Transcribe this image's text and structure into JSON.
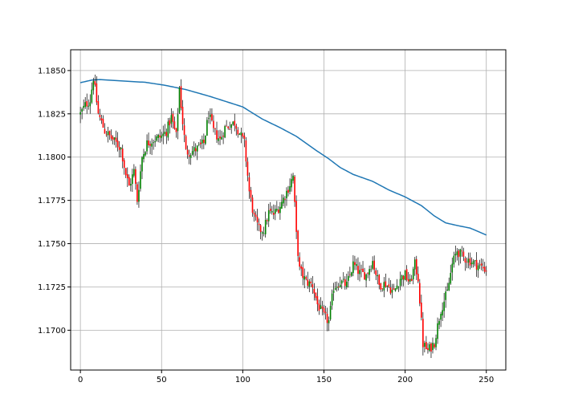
{
  "chart_data": {
    "type": "candlestick",
    "title": "",
    "xlabel": "",
    "ylabel": "",
    "xlim": [
      -6,
      262
    ],
    "ylim": [
      1.1677,
      1.1862
    ],
    "grid": true,
    "x_ticks": [
      0,
      50,
      100,
      150,
      200,
      250
    ],
    "x_tick_labels": [
      "0",
      "50",
      "100",
      "150",
      "200",
      "250"
    ],
    "y_ticks": [
      1.17,
      1.1725,
      1.175,
      1.1775,
      1.18,
      1.1825,
      1.185
    ],
    "y_tick_labels": [
      "1.1700",
      "1.1725",
      "1.1750",
      "1.1775",
      "1.1800",
      "1.1825",
      "1.1850"
    ],
    "colors": {
      "up": "#008000",
      "down": "#ff0000",
      "wick": "#000000",
      "moving_average": "#1f77b4",
      "grid": "#b0b0b0"
    },
    "close_anchors": [
      [
        0,
        1.1825
      ],
      [
        3,
        1.183
      ],
      [
        6,
        1.1833
      ],
      [
        8,
        1.1846
      ],
      [
        11,
        1.1825
      ],
      [
        15,
        1.1815
      ],
      [
        20,
        1.181
      ],
      [
        25,
        1.1805
      ],
      [
        28,
        1.179
      ],
      [
        30,
        1.1783
      ],
      [
        33,
        1.1792
      ],
      [
        35,
        1.1775
      ],
      [
        38,
        1.18
      ],
      [
        41,
        1.1808
      ],
      [
        45,
        1.181
      ],
      [
        50,
        1.1812
      ],
      [
        53,
        1.1815
      ],
      [
        56,
        1.1823
      ],
      [
        59,
        1.1812
      ],
      [
        61,
        1.184
      ],
      [
        63,
        1.182
      ],
      [
        65,
        1.1803
      ],
      [
        68,
        1.1803
      ],
      [
        72,
        1.1805
      ],
      [
        76,
        1.1808
      ],
      [
        79,
        1.1825
      ],
      [
        82,
        1.1815
      ],
      [
        86,
        1.181
      ],
      [
        89,
        1.1817
      ],
      [
        95,
        1.182
      ],
      [
        101,
        1.1808
      ],
      [
        104,
        1.178
      ],
      [
        107,
        1.1765
      ],
      [
        110,
        1.1758
      ],
      [
        113,
        1.1758
      ],
      [
        116,
        1.1768
      ],
      [
        119,
        1.1767
      ],
      [
        123,
        1.1772
      ],
      [
        128,
        1.1782
      ],
      [
        131,
        1.1789
      ],
      [
        133,
        1.1755
      ],
      [
        135,
        1.1735
      ],
      [
        139,
        1.1728
      ],
      [
        143,
        1.1726
      ],
      [
        146,
        1.1715
      ],
      [
        150,
        1.1708
      ],
      [
        153,
        1.1705
      ],
      [
        156,
        1.1725
      ],
      [
        160,
        1.1728
      ],
      [
        164,
        1.1726
      ],
      [
        168,
        1.1738
      ],
      [
        172,
        1.1733
      ],
      [
        176,
        1.1732
      ],
      [
        180,
        1.174
      ],
      [
        184,
        1.1726
      ],
      [
        188,
        1.1727
      ],
      [
        193,
        1.1722
      ],
      [
        197,
        1.173
      ],
      [
        200,
        1.1732
      ],
      [
        203,
        1.1727
      ],
      [
        206,
        1.1738
      ],
      [
        208,
        1.173
      ],
      [
        211,
        1.1692
      ],
      [
        214,
        1.1688
      ],
      [
        218,
        1.1693
      ],
      [
        222,
        1.1712
      ],
      [
        226,
        1.1722
      ],
      [
        229,
        1.1738
      ],
      [
        232,
        1.1746
      ],
      [
        236,
        1.1742
      ],
      [
        240,
        1.174
      ],
      [
        244,
        1.1738
      ],
      [
        248,
        1.1736
      ],
      [
        250,
        1.1735
      ]
    ],
    "moving_average_anchors": [
      [
        0,
        1.1843
      ],
      [
        7,
        1.18445
      ],
      [
        12,
        1.18448
      ],
      [
        22,
        1.18442
      ],
      [
        40,
        1.18432
      ],
      [
        52,
        1.18415
      ],
      [
        65,
        1.1839
      ],
      [
        80,
        1.1835
      ],
      [
        90,
        1.1832
      ],
      [
        100,
        1.1829
      ],
      [
        112,
        1.1822
      ],
      [
        123,
        1.1817
      ],
      [
        133,
        1.1812
      ],
      [
        145,
        1.1804
      ],
      [
        153,
        1.1799
      ],
      [
        160,
        1.1794
      ],
      [
        168,
        1.179
      ],
      [
        180,
        1.1786
      ],
      [
        190,
        1.1781
      ],
      [
        200,
        1.1777
      ],
      [
        210,
        1.1772
      ],
      [
        218,
        1.1766
      ],
      [
        225,
        1.1762
      ],
      [
        232,
        1.17605
      ],
      [
        240,
        1.1759
      ],
      [
        250,
        1.1755
      ]
    ]
  }
}
